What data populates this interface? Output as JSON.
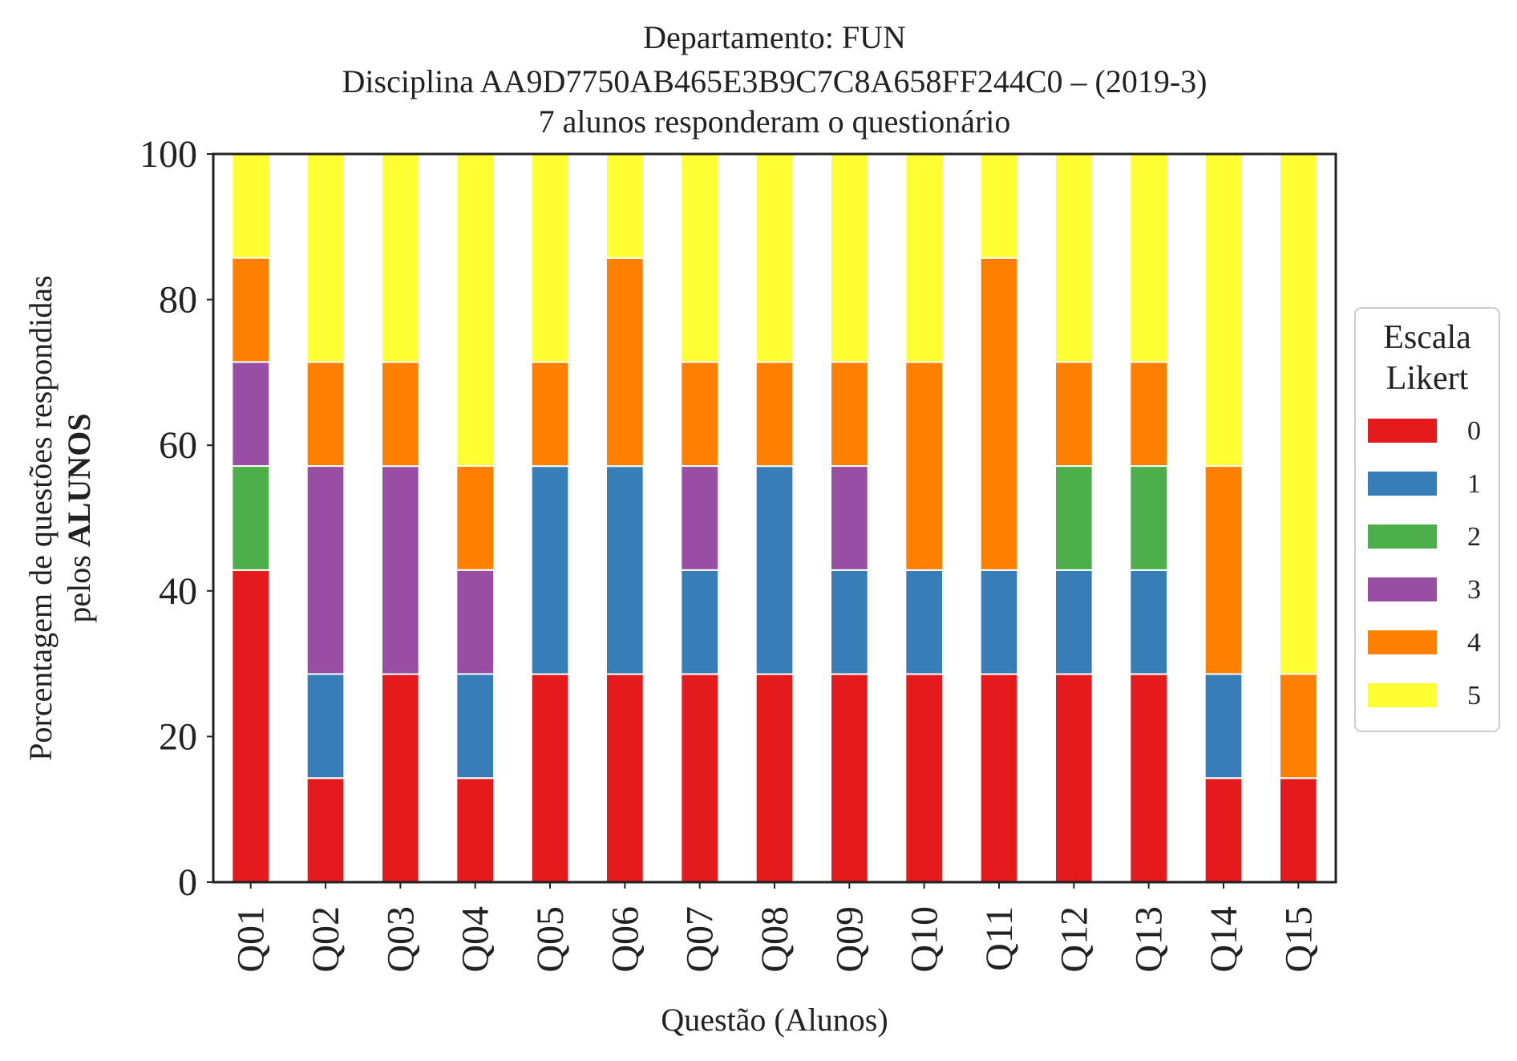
{
  "chart_data": {
    "type": "bar",
    "stacked": true,
    "title_lines": [
      "Departamento: FUN",
      "Disciplina AA9D7750AB465E3B9C7C8A658FF244C0 – (2019-3)",
      "7 alunos responderam o questionário"
    ],
    "xlabel": "Questão (Alunos)",
    "ylabel_line1": "Porcentagem de questões respondidas",
    "ylabel_line2_prefix": "pelos ",
    "ylabel_line2_bold": "ALUNOS",
    "ylim": [
      0,
      100
    ],
    "yticks": [
      "0",
      "20",
      "40",
      "60",
      "80",
      "100"
    ],
    "categories": [
      "Q01",
      "Q02",
      "Q03",
      "Q04",
      "Q05",
      "Q06",
      "Q07",
      "Q08",
      "Q09",
      "Q10",
      "Q11",
      "Q12",
      "Q13",
      "Q14",
      "Q15"
    ],
    "legend": {
      "title_lines": [
        "Escala",
        "Likert"
      ],
      "placement": "right"
    },
    "grid": false,
    "series": [
      {
        "name": "0",
        "color": "#e41a1c",
        "values": [
          42.86,
          14.29,
          28.57,
          14.29,
          28.57,
          28.57,
          28.57,
          28.57,
          28.57,
          28.57,
          28.57,
          28.57,
          28.57,
          14.29,
          14.29
        ]
      },
      {
        "name": "1",
        "color": "#377eb8",
        "values": [
          0,
          14.29,
          0,
          14.29,
          28.57,
          28.57,
          14.29,
          28.57,
          14.29,
          14.29,
          14.29,
          14.29,
          14.29,
          14.29,
          0
        ]
      },
      {
        "name": "2",
        "color": "#4daf4a",
        "values": [
          14.29,
          0,
          0,
          0,
          0,
          0,
          0,
          0,
          0,
          0,
          0,
          14.29,
          14.29,
          0,
          0
        ]
      },
      {
        "name": "3",
        "color": "#984ea3",
        "values": [
          14.29,
          28.57,
          28.57,
          14.29,
          0,
          0,
          14.29,
          0,
          14.29,
          0,
          0,
          0,
          0,
          0,
          0
        ]
      },
      {
        "name": "4",
        "color": "#ff7f00",
        "values": [
          14.29,
          14.29,
          14.29,
          14.29,
          14.29,
          28.57,
          14.29,
          14.29,
          14.29,
          28.57,
          42.86,
          14.29,
          14.29,
          28.57,
          14.29
        ]
      },
      {
        "name": "5",
        "color": "#ffff33",
        "values": [
          14.29,
          28.57,
          28.57,
          42.86,
          28.57,
          14.29,
          28.57,
          28.57,
          28.57,
          28.57,
          14.29,
          28.57,
          28.57,
          42.86,
          71.43
        ]
      }
    ]
  }
}
